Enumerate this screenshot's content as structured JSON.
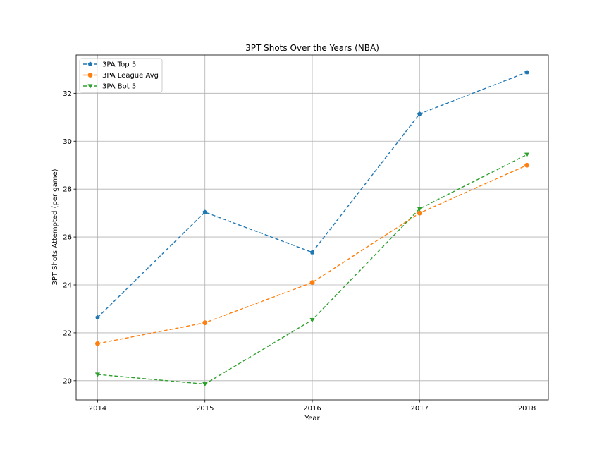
{
  "chart_data": {
    "type": "line",
    "title": "3PT Shots Over the Years (NBA)",
    "xlabel": "Year",
    "ylabel": "3PT Shots Attempted (per game)",
    "x": [
      2014,
      2015,
      2016,
      2017,
      2018
    ],
    "x_tick_labels": [
      "2014",
      "2015",
      "2016",
      "2017",
      "2018"
    ],
    "xlim": [
      2013.8,
      2018.2
    ],
    "ylim": [
      19.2,
      33.6
    ],
    "y_ticks": [
      20,
      22,
      24,
      26,
      28,
      30,
      32
    ],
    "grid": true,
    "legend_placement": "upper-left",
    "series": [
      {
        "name": "3PA Top 5",
        "values": [
          22.64,
          27.04,
          25.36,
          31.14,
          32.88
        ],
        "color": "#1f77b4",
        "marker": "pentagon",
        "line_style": "dashed"
      },
      {
        "name": "3PA League Avg",
        "values": [
          21.55,
          22.42,
          24.1,
          27.0,
          29.0
        ],
        "color": "#ff7f0e",
        "marker": "circle",
        "line_style": "dashed"
      },
      {
        "name": "3PA Bot 5",
        "values": [
          20.26,
          19.86,
          22.54,
          27.18,
          29.44
        ],
        "color": "#2ca02c",
        "marker": "triangle-down",
        "line_style": "dashed"
      }
    ]
  }
}
